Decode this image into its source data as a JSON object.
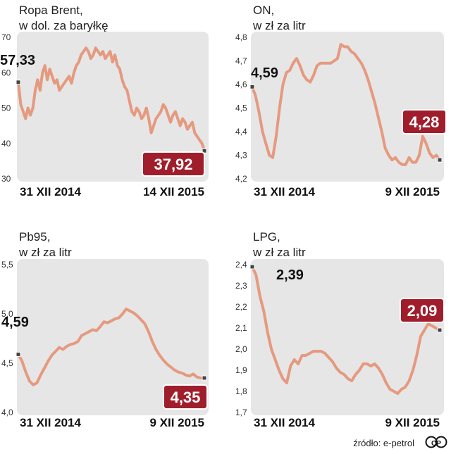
{
  "colors": {
    "panel": "#e6e6e6",
    "line": "#e59a80",
    "badge": "#a01e2c",
    "badge_text": "#ffffff",
    "marker": "#444444"
  },
  "source": "źródło: e-petrol",
  "logo": "CP",
  "chart_data": [
    {
      "type": "line",
      "title": "Ropa Brent,",
      "subtitle": "w dol. za baryłkę",
      "ylim": [
        30,
        70
      ],
      "yticks": [
        "70",
        "60",
        "50",
        "40",
        "30"
      ],
      "yticks_values": [
        70,
        60,
        50,
        40,
        30
      ],
      "x_start_label": "31 XII 2014",
      "x_end_label": "14 XII 2015",
      "start_value_label": "57,33",
      "end_value_label": "37,92",
      "start_value": 57.33,
      "end_value": 37.92,
      "values": [
        57.3,
        51,
        49,
        47,
        50,
        48,
        50,
        55,
        58,
        55,
        60,
        62,
        58,
        61,
        59,
        57,
        58,
        55,
        56,
        57,
        58,
        59,
        57,
        60,
        62,
        63,
        65,
        66,
        67,
        66,
        64,
        65,
        67,
        66,
        65,
        66,
        64,
        65,
        66,
        63,
        65,
        62,
        61,
        58,
        56,
        55,
        52,
        49,
        48,
        50,
        49,
        47,
        48,
        50,
        47,
        43,
        45,
        47,
        48,
        49,
        51,
        50,
        48,
        46,
        48,
        49,
        47,
        45,
        47,
        46,
        44,
        45,
        46,
        43,
        42,
        41,
        40,
        37.9
      ]
    },
    {
      "type": "line",
      "title": "ON,",
      "subtitle": "w zł za litr",
      "ylim": [
        4.2,
        4.8
      ],
      "yticks": [
        "4,8",
        "4,7",
        "4,6",
        "4,5",
        "4,4",
        "4,3",
        "4,2"
      ],
      "yticks_values": [
        4.8,
        4.7,
        4.6,
        4.5,
        4.4,
        4.3,
        4.2
      ],
      "x_start_label": "31 XII 2014",
      "x_end_label": "9 XII 2015",
      "start_value_label": "4,59",
      "end_value_label": "4,28",
      "start_value": 4.59,
      "end_value": 4.28,
      "values": [
        4.59,
        4.55,
        4.48,
        4.4,
        4.35,
        4.3,
        4.29,
        4.38,
        4.5,
        4.6,
        4.65,
        4.66,
        4.69,
        4.71,
        4.68,
        4.64,
        4.62,
        4.61,
        4.64,
        4.68,
        4.69,
        4.69,
        4.69,
        4.69,
        4.7,
        4.71,
        4.77,
        4.76,
        4.76,
        4.74,
        4.73,
        4.71,
        4.69,
        4.66,
        4.62,
        4.57,
        4.52,
        4.46,
        4.4,
        4.33,
        4.3,
        4.28,
        4.29,
        4.27,
        4.26,
        4.26,
        4.29,
        4.27,
        4.27,
        4.3,
        4.38,
        4.35,
        4.31,
        4.29,
        4.3,
        4.28
      ]
    },
    {
      "type": "line",
      "title": "Pb95,",
      "subtitle": "w zł za litr",
      "ylim": [
        4.0,
        5.5
      ],
      "yticks": [
        "5,5",
        "5,0",
        "4,5",
        "4,0"
      ],
      "yticks_values": [
        5.5,
        5.0,
        4.5,
        4.0
      ],
      "x_start_label": "31 XII 2014",
      "x_end_label": "9 XII 2015",
      "start_value_label": "4,59",
      "end_value_label": "4,35",
      "start_value": 4.59,
      "end_value": 4.35,
      "values": [
        4.59,
        4.52,
        4.41,
        4.32,
        4.28,
        4.3,
        4.38,
        4.45,
        4.52,
        4.58,
        4.62,
        4.66,
        4.64,
        4.67,
        4.69,
        4.7,
        4.72,
        4.78,
        4.8,
        4.82,
        4.84,
        4.83,
        4.87,
        4.92,
        4.91,
        4.93,
        4.95,
        4.96,
        5.0,
        5.05,
        5.03,
        5.01,
        4.98,
        4.94,
        4.9,
        4.82,
        4.72,
        4.64,
        4.58,
        4.53,
        4.49,
        4.46,
        4.43,
        4.41,
        4.4,
        4.38,
        4.37,
        4.39,
        4.36,
        4.35,
        4.35
      ]
    },
    {
      "type": "line",
      "title": "LPG,",
      "subtitle": "w zł za litr",
      "ylim": [
        1.7,
        2.4
      ],
      "yticks": [
        "2,4",
        "2,3",
        "2,2",
        "2,1",
        "2,0",
        "1,9",
        "1,8",
        "1,7"
      ],
      "yticks_values": [
        2.4,
        2.3,
        2.2,
        2.1,
        2.0,
        1.9,
        1.8,
        1.7
      ],
      "x_start_label": "31 XII 2014",
      "x_end_label": "9 XII 2015",
      "start_value_label": "2,39",
      "end_value_label": "2,09",
      "start_value": 2.39,
      "end_value": 2.09,
      "values": [
        2.39,
        2.35,
        2.25,
        2.18,
        2.08,
        2.0,
        1.95,
        1.9,
        1.86,
        1.84,
        1.92,
        1.95,
        1.93,
        1.97,
        1.97,
        1.98,
        1.99,
        1.99,
        1.99,
        1.98,
        1.96,
        1.94,
        1.91,
        1.89,
        1.88,
        1.86,
        1.85,
        1.88,
        1.9,
        1.93,
        1.93,
        1.92,
        1.93,
        1.91,
        1.88,
        1.84,
        1.81,
        1.8,
        1.79,
        1.81,
        1.82,
        1.85,
        1.9,
        1.97,
        2.06,
        2.09,
        2.12,
        2.11,
        2.1,
        2.09
      ]
    }
  ]
}
